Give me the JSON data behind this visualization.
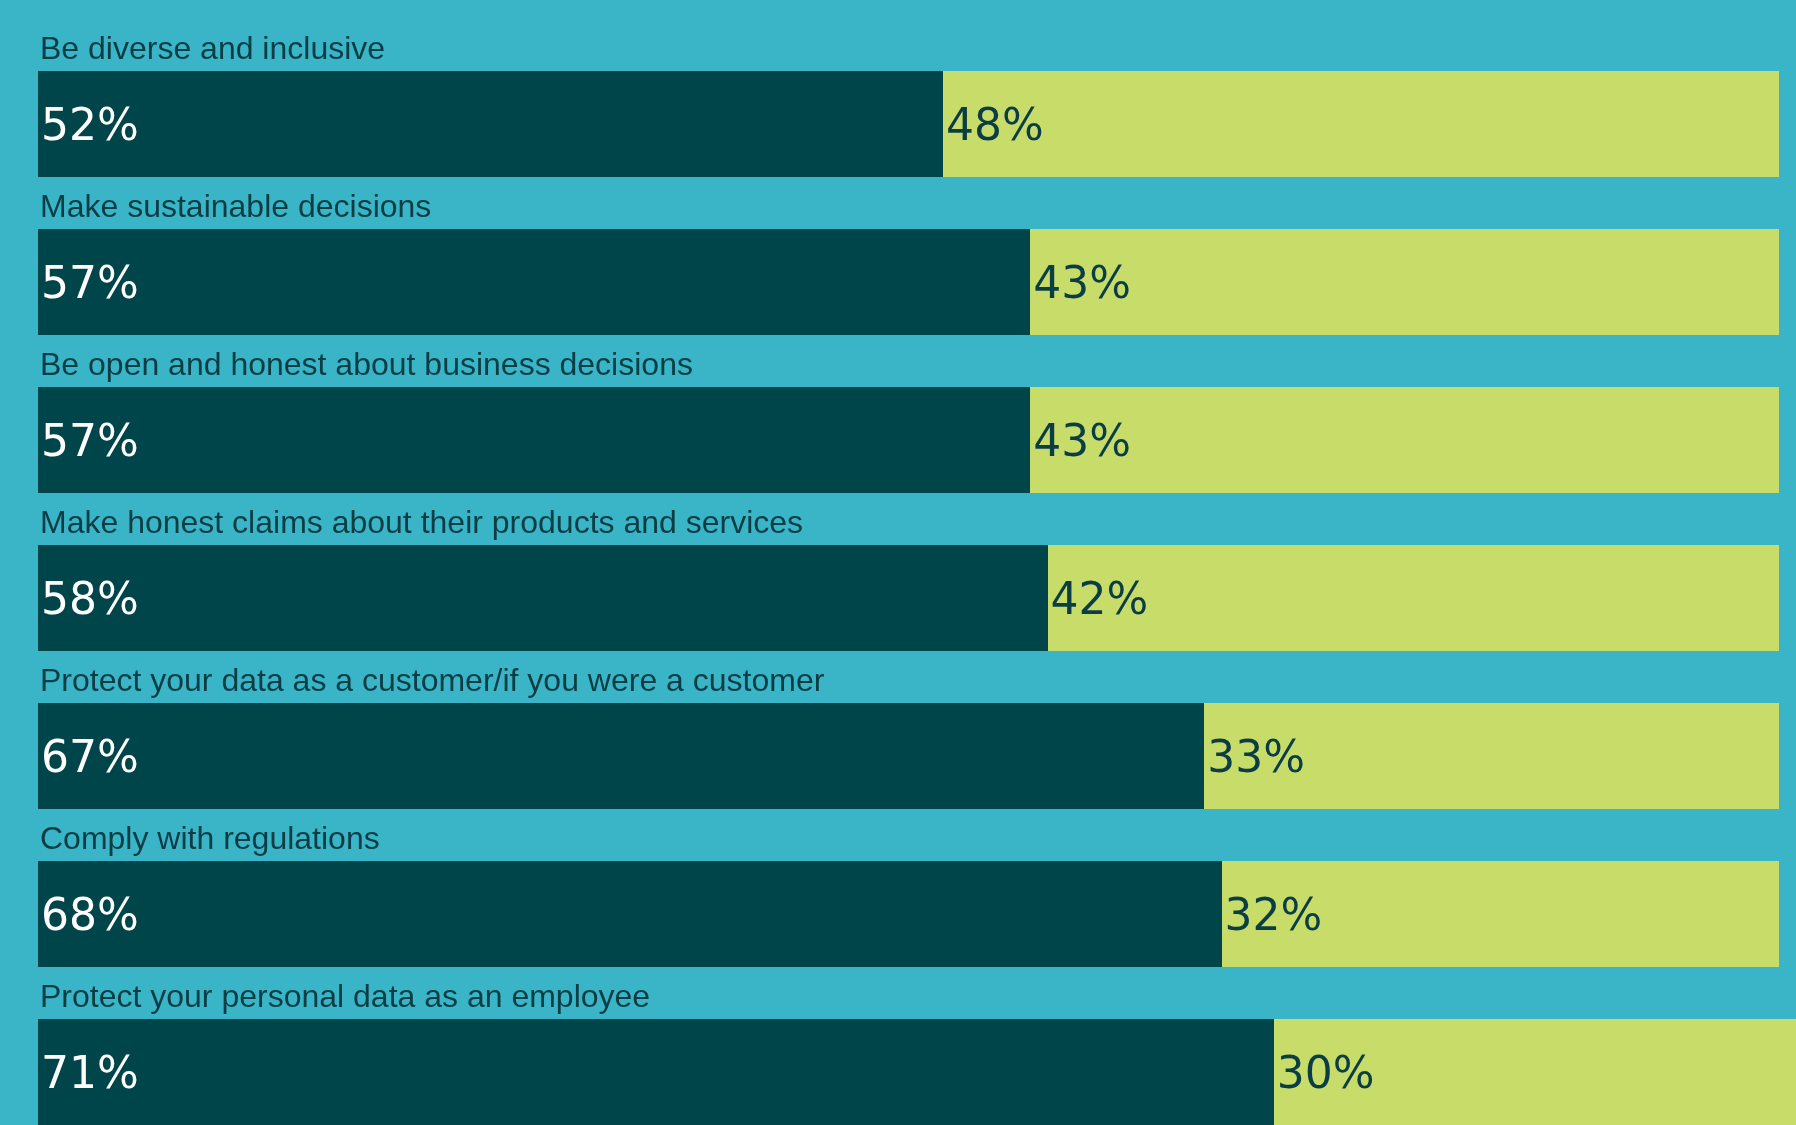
{
  "chart_data": {
    "type": "bar",
    "orientation": "horizontal",
    "stacked": true,
    "categories": [
      "Be diverse and inclusive",
      "Make sustainable decisions",
      "Be open and honest about business decisions",
      "Make honest claims about their products and services",
      "Protect your data as a customer/if you were a customer",
      "Comply with regulations",
      "Protect your personal data as an employee"
    ],
    "series": [
      {
        "color": "#00454a",
        "values": [
          52,
          57,
          57,
          58,
          67,
          68,
          71
        ],
        "value_labels": [
          "52%",
          "57%",
          "57%",
          "58%",
          "67%",
          "68%",
          "71%"
        ]
      },
      {
        "color": "#c8dc6a",
        "values": [
          48,
          43,
          43,
          42,
          33,
          32,
          30
        ],
        "value_labels": [
          "48%",
          "43%",
          "43%",
          "42%",
          "33%",
          "32%",
          "30%"
        ]
      }
    ],
    "xlim": [
      0,
      101
    ],
    "grid": false,
    "tick_labels": "y"
  }
}
